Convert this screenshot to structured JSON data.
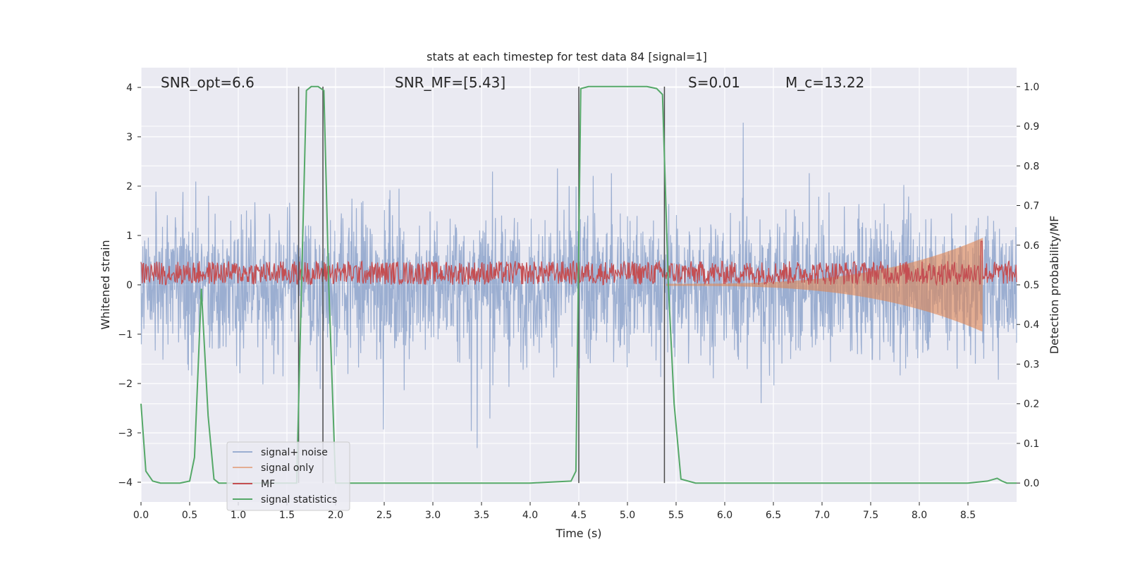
{
  "chart_data": {
    "type": "line",
    "title": "stats at each timestep for test data 84 [signal=1]",
    "xlabel": "Time (s)",
    "ylabel": "Whitened strain",
    "ylabel_right": "Detection probability/MF",
    "xlim": [
      0.0,
      9.0
    ],
    "ylim": [
      -4.4,
      4.4
    ],
    "ylim_right": [
      -0.0477,
      1.0477
    ],
    "x_ticks": [
      "0.0",
      "0.5",
      "1.0",
      "1.5",
      "2.0",
      "2.5",
      "3.0",
      "3.5",
      "4.0",
      "4.5",
      "5.0",
      "5.5",
      "6.0",
      "6.5",
      "7.0",
      "7.5",
      "8.0",
      "8.5"
    ],
    "y_ticks": [
      "4",
      "3",
      "2",
      "1",
      "0",
      "−1",
      "−2",
      "−3",
      "−4"
    ],
    "y_ticks_right": [
      "1.0",
      "0.9",
      "0.8",
      "0.7",
      "0.6",
      "0.5",
      "0.4",
      "0.3",
      "0.2",
      "0.1",
      "0.0"
    ],
    "grid": true,
    "legend_position": "lower-left",
    "annotations": {
      "snr_opt": "SNR_opt=6.6",
      "snr_mf": "SNR_MF=[5.43]",
      "s_value": "S=0.01",
      "mc_value": "M_c=13.22"
    },
    "vertical_lines_x": [
      1.62,
      1.87,
      4.5,
      5.38
    ],
    "series": [
      {
        "name": "signal+ noise",
        "color": "#4c72b0",
        "description_of_values": "dense noisy strain, values approx. between -3.9 and 4.0",
        "envelope": {
          "max_typical": 2.0,
          "min_typical": -2.0,
          "peak_max": 4.0,
          "peak_min": -3.9
        }
      },
      {
        "name": "signal only",
        "color": "#dd8452",
        "chirp": {
          "start_x": 5.4,
          "end_x": 8.65,
          "start_amplitude": 0.02,
          "end_amplitude": 0.95
        }
      },
      {
        "name": "MF",
        "color": "#c44e52",
        "axis": "right",
        "baseline": 0.5,
        "typical_range": [
          0.5,
          0.56
        ],
        "peak": {
          "x": 8.64,
          "y": 0.61
        }
      },
      {
        "name": "signal statistics",
        "color": "#55a868",
        "axis": "right",
        "x": [
          0.0,
          0.05,
          0.12,
          0.2,
          0.3,
          0.4,
          0.5,
          0.55,
          0.62,
          0.69,
          0.75,
          0.8,
          0.9,
          1.0,
          1.2,
          1.4,
          1.55,
          1.6,
          1.65,
          1.7,
          1.75,
          1.82,
          1.88,
          1.93,
          2.0,
          2.2,
          3.0,
          4.0,
          4.42,
          4.47,
          4.52,
          4.6,
          5.0,
          5.2,
          5.3,
          5.36,
          5.42,
          5.48,
          5.55,
          5.7,
          6.0,
          7.0,
          8.0,
          8.5,
          8.7,
          8.8,
          8.85,
          8.9,
          9.0
        ],
        "values": [
          0.2,
          0.03,
          0.005,
          0.0,
          0.0,
          0.0,
          0.005,
          0.065,
          0.49,
          0.17,
          0.01,
          0.0,
          0.0,
          0.0,
          0.0,
          0.0,
          0.0,
          0.0,
          0.5,
          0.99,
          1.0,
          1.0,
          0.99,
          0.5,
          0.0,
          0.0,
          0.0,
          0.0,
          0.005,
          0.03,
          0.995,
          1.0,
          1.0,
          1.0,
          0.995,
          0.98,
          0.5,
          0.2,
          0.01,
          0.0,
          0.0,
          0.0,
          0.0,
          0.0,
          0.005,
          0.012,
          0.005,
          0.0,
          0.0
        ]
      }
    ]
  }
}
